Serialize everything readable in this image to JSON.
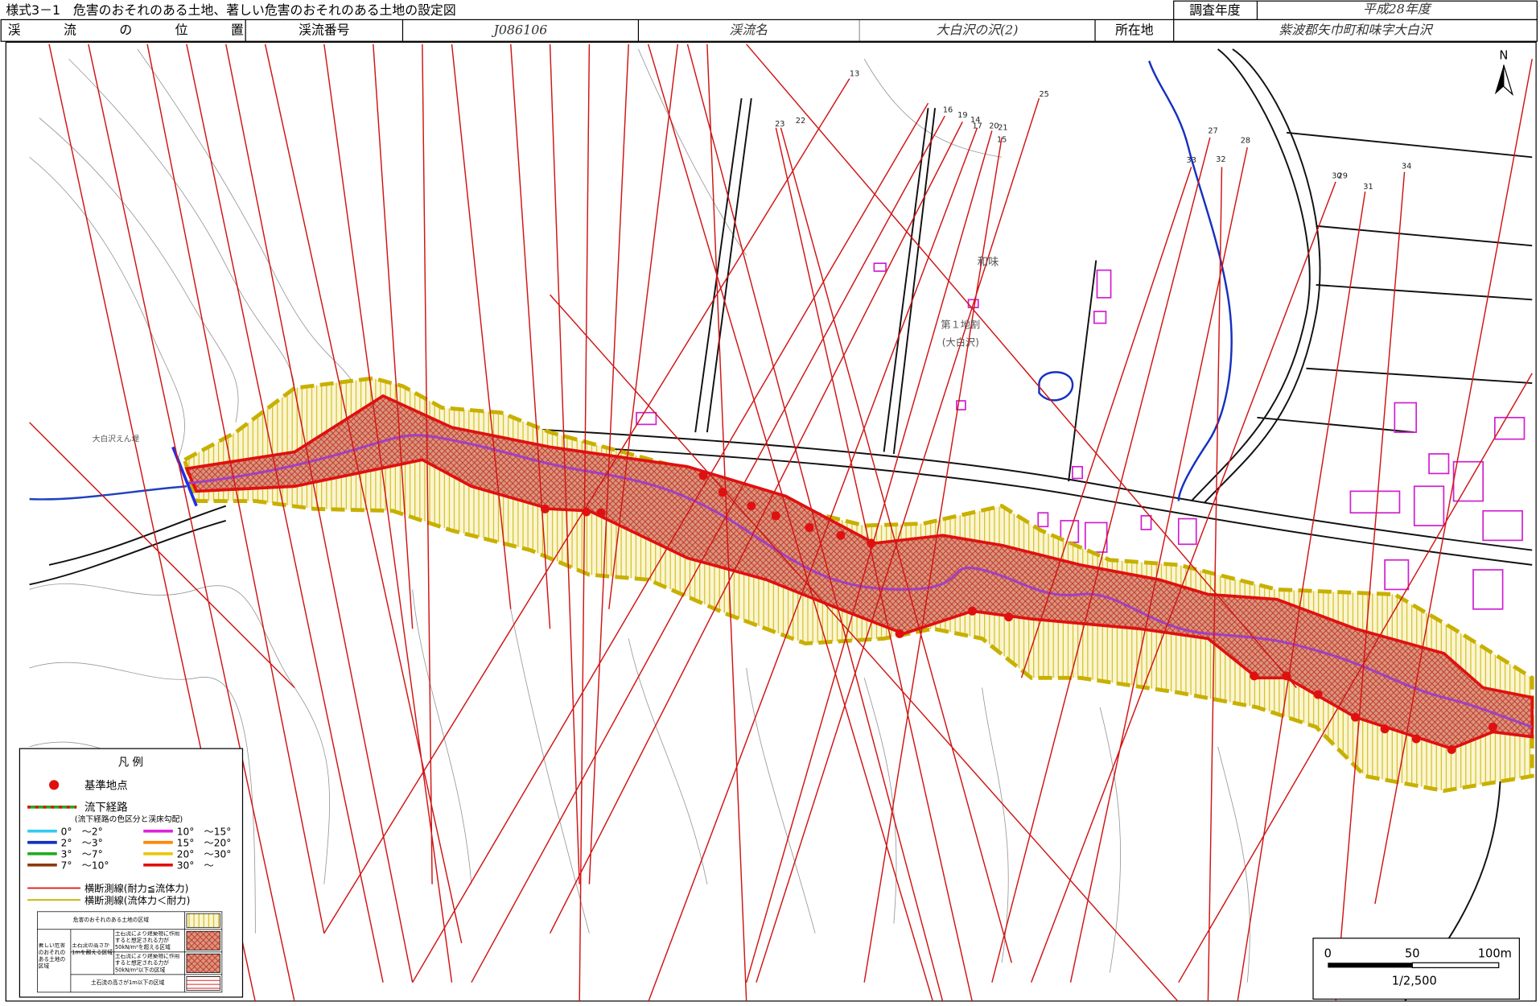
{
  "header": {
    "title": "様式3－1　危害のおそれのある土地、著しい危害のおそれのある土地の設定図",
    "survey_year_label": "調査年度",
    "survey_year": "平成28年度"
  },
  "info_row": {
    "location_label": "渓　流　の　位　置",
    "stream_no_label": "渓流番号",
    "stream_no": "J086106",
    "stream_name_label": "渓流名",
    "stream_name": "大白沢の沢(2)",
    "address_label": "所在地",
    "address": "紫波郡矢巾町和味字大白沢"
  },
  "map": {
    "north": "N",
    "place": "和味",
    "district": "第１地割",
    "district_sub": "(大白沢)",
    "dam": "大白沢えん堤",
    "section_numbers": [
      "13",
      "25",
      "16",
      "19",
      "14",
      "17",
      "20",
      "21",
      "15",
      "23",
      "22",
      "27",
      "28",
      "33",
      "32",
      "29",
      "30",
      "31",
      "34"
    ]
  },
  "legend": {
    "title": "凡 例",
    "reference_point": "基準地点",
    "flow_path": "流下経路",
    "flow_path_note": "(流下経路の色区分と渓床勾配)",
    "slopes": [
      {
        "label": "0°　～2°",
        "color": "#33ccee"
      },
      {
        "label": "2°　～3°",
        "color": "#1030c0"
      },
      {
        "label": "3°　～7°",
        "color": "#22aa22"
      },
      {
        "label": "7°　～10°",
        "color": "#8b3a10"
      },
      {
        "label": "10°　～15°",
        "color": "#dd22dd"
      },
      {
        "label": "15°　～20°",
        "color": "#ff8800"
      },
      {
        "label": "20°　～30°",
        "color": "#e8c800"
      },
      {
        "label": "30°　～",
        "color": "#e01010"
      }
    ],
    "section_red": "横断測線(耐力≦流体力)",
    "section_yellow": "横断測線(流体力＜耐力)",
    "zone_danger": "危害のおそれのある土地の区域",
    "zone_severe": "著しい危害のおそれのある土地の区域",
    "zone_height_over": "土石流の高さが1mを超える区域",
    "zone_force_over": "土石流により建築物に作用すると想定される力が50kN/m²を超える区域",
    "zone_force_under": "土石流により建築物に作用すると想定される力が50kN/m²以下の区域",
    "zone_height_under": "土石流の高さが1m以下の区域"
  },
  "scale_bar": {
    "ticks": [
      "0",
      "50",
      "100m"
    ],
    "ratio": "1/2,500"
  }
}
